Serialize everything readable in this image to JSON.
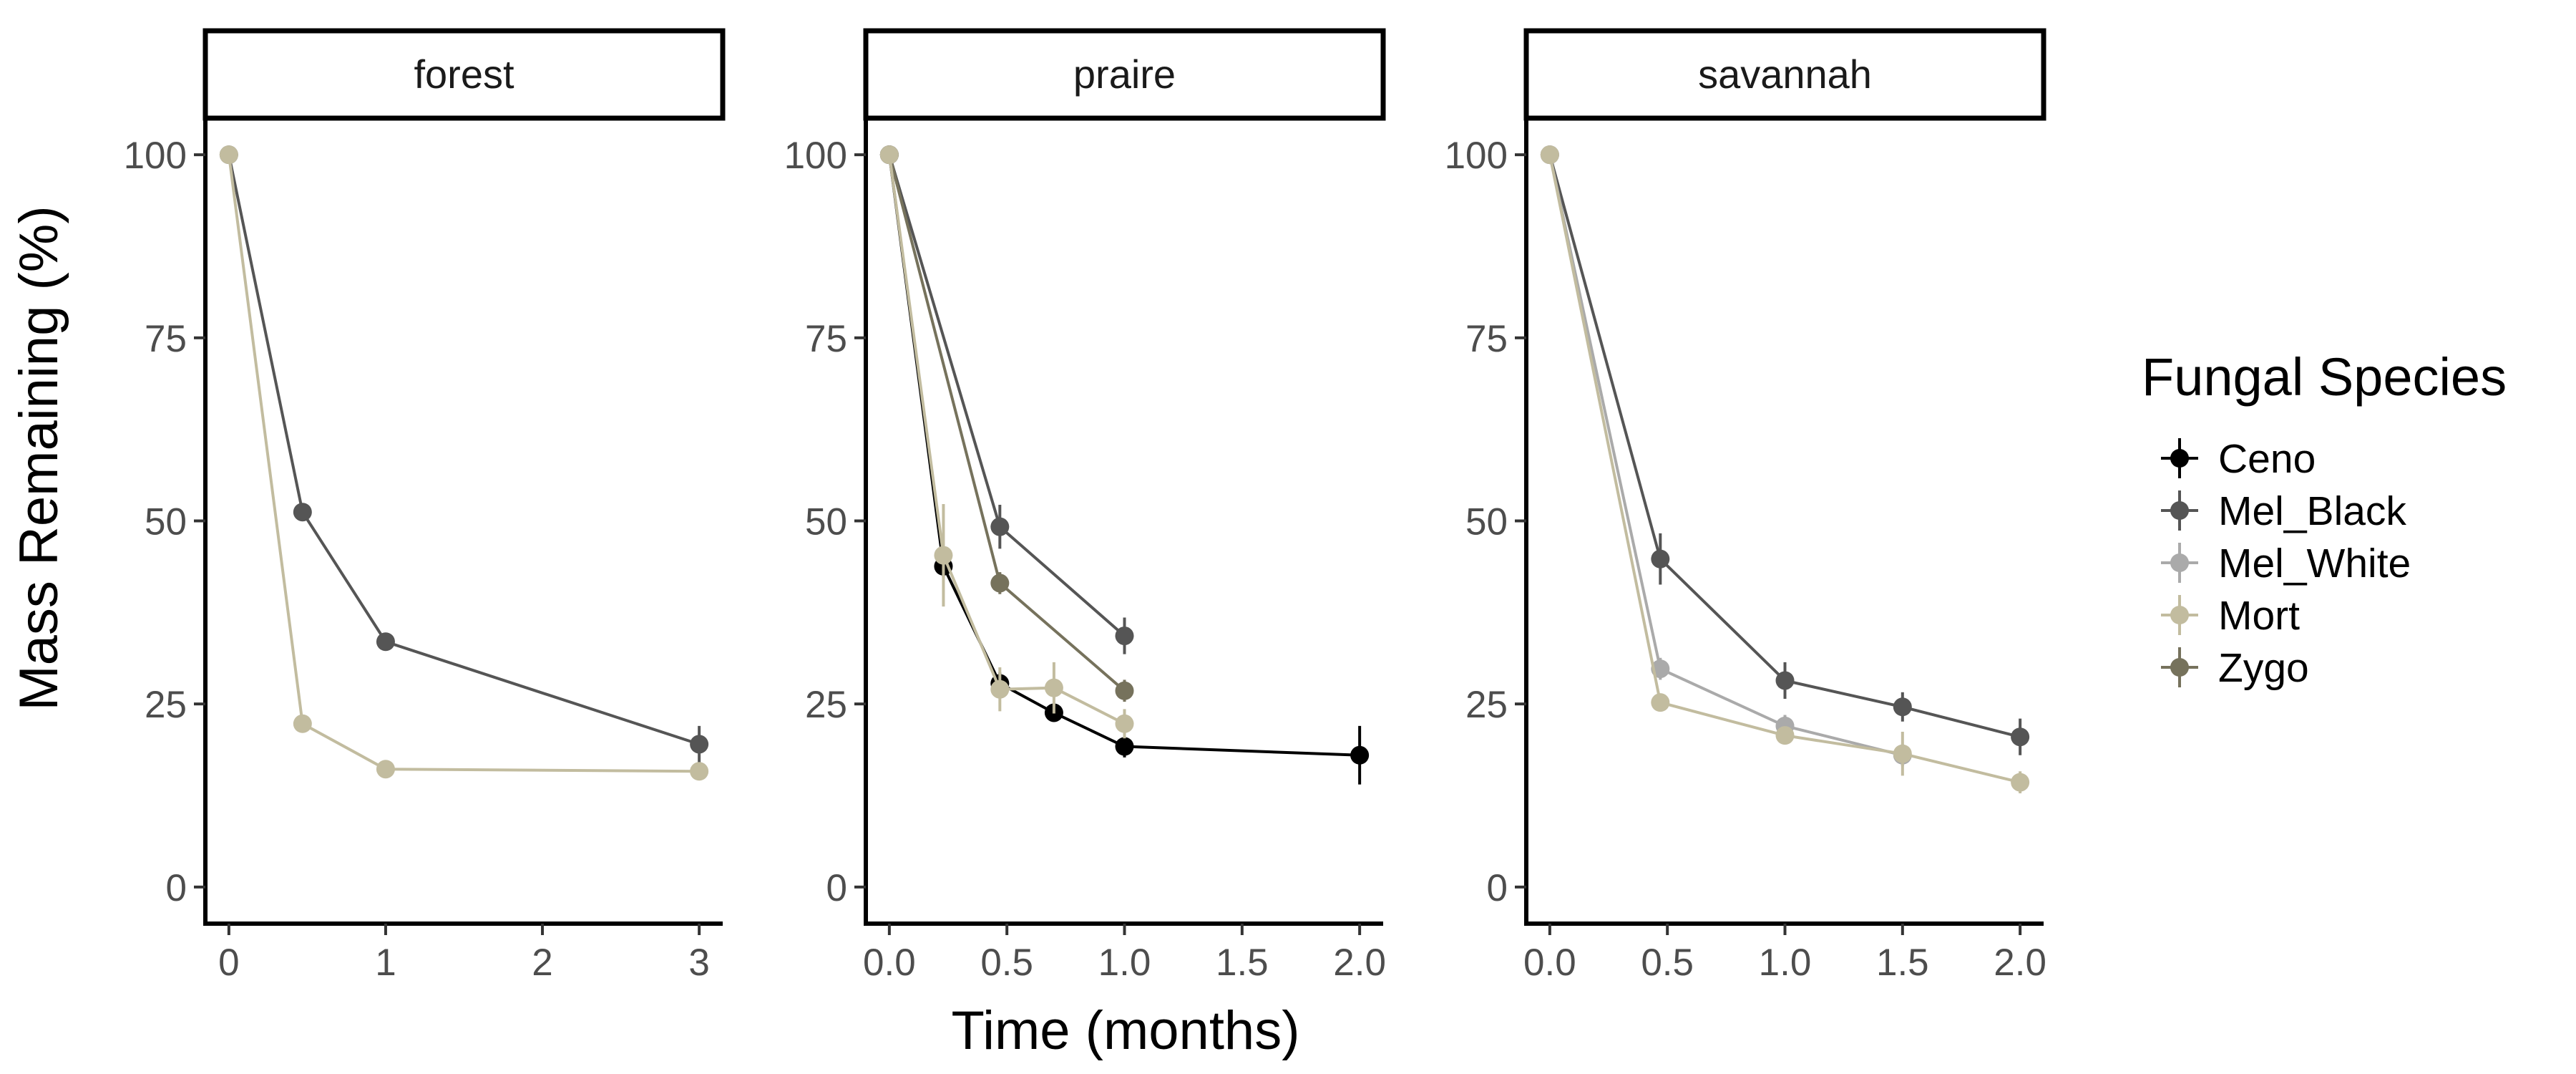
{
  "chart_data": {
    "type": "line",
    "ylabel": "Mass Remaining (%)",
    "xlabel": "Time (months)",
    "ylim": [
      -5,
      105
    ],
    "yticks": [
      0,
      25,
      50,
      75,
      100
    ],
    "grid": false,
    "legend": {
      "title": "Fungal Species",
      "placement": "right",
      "entries": [
        {
          "name": "Ceno",
          "color": "#000000"
        },
        {
          "name": "Mel_Black",
          "color": "#555555"
        },
        {
          "name": "Mel_White",
          "color": "#aaaaaa"
        },
        {
          "name": "Mort",
          "color": "#c2bc9f"
        },
        {
          "name": "Zygo",
          "color": "#76725c"
        }
      ]
    },
    "panels": [
      {
        "strip": "forest",
        "xlim": [
          -0.15,
          3.15
        ],
        "xticks": [
          "0",
          "1",
          "2",
          "3"
        ],
        "xtick_values": [
          0,
          1,
          2,
          3
        ],
        "series": [
          {
            "name": "Mel_Black",
            "color": "#555555",
            "x": [
              0,
              0.47,
              1,
              3
            ],
            "y": [
              100,
              51.2,
              33.5,
              19.5
            ],
            "err": [
              0,
              1.2,
              1.2,
              2.5
            ]
          },
          {
            "name": "Mort",
            "color": "#c2bc9f",
            "x": [
              0,
              0.47,
              1,
              3
            ],
            "y": [
              100,
              22.3,
              16.1,
              15.8
            ],
            "err": [
              0,
              1.0,
              0.8,
              0.8
            ]
          }
        ]
      },
      {
        "strip": "praire",
        "xlim": [
          -0.1,
          2.1
        ],
        "xticks": [
          "0.0",
          "0.5",
          "1.0",
          "1.5",
          "2.0"
        ],
        "xtick_values": [
          0,
          0.5,
          1,
          1.5,
          2
        ],
        "series": [
          {
            "name": "Ceno",
            "color": "#000000",
            "x": [
              0,
              0.23,
              0.47,
              0.7,
              1,
              2
            ],
            "y": [
              100,
              43.8,
              27.8,
              23.8,
              19.2,
              18.0
            ],
            "err": [
              0,
              1.5,
              1.5,
              1.0,
              1.5,
              4.0
            ]
          },
          {
            "name": "Mel_Black",
            "color": "#555555",
            "x": [
              0,
              0.47,
              1
            ],
            "y": [
              100,
              49.2,
              34.3
            ],
            "err": [
              0,
              3.0,
              2.5
            ]
          },
          {
            "name": "Zygo",
            "color": "#76725c",
            "x": [
              0,
              0.47,
              1
            ],
            "y": [
              100,
              41.5,
              26.8
            ],
            "err": [
              0,
              1.5,
              1.5
            ]
          },
          {
            "name": "Mort",
            "color": "#c2bc9f",
            "x": [
              0,
              0.23,
              0.47,
              0.7,
              1
            ],
            "y": [
              100,
              45.3,
              27.0,
              27.2,
              22.3
            ],
            "err": [
              0,
              7.0,
              3.0,
              3.5,
              2.0
            ]
          }
        ]
      },
      {
        "strip": "savannah",
        "xlim": [
          -0.1,
          2.1
        ],
        "xticks": [
          "0.0",
          "0.5",
          "1.0",
          "1.5",
          "2.0"
        ],
        "xtick_values": [
          0,
          0.5,
          1,
          1.5,
          2
        ],
        "series": [
          {
            "name": "Mel_Black",
            "color": "#555555",
            "x": [
              0,
              0.47,
              1,
              1.5,
              2
            ],
            "y": [
              100,
              44.8,
              28.2,
              24.6,
              20.5
            ],
            "err": [
              0,
              3.5,
              2.5,
              2.0,
              2.5
            ]
          },
          {
            "name": "Mel_White",
            "color": "#aaaaaa",
            "x": [
              0,
              0.47,
              1,
              1.5
            ],
            "y": [
              100,
              29.8,
              22.0,
              18.0
            ],
            "err": [
              0,
              1.5,
              1.5,
              1.5
            ]
          },
          {
            "name": "Mort",
            "color": "#c2bc9f",
            "x": [
              0,
              0.47,
              1,
              1.5,
              2
            ],
            "y": [
              100,
              25.2,
              20.7,
              18.2,
              14.3
            ],
            "err": [
              0,
              1.0,
              1.0,
              3.0,
              1.5
            ]
          }
        ]
      }
    ]
  }
}
